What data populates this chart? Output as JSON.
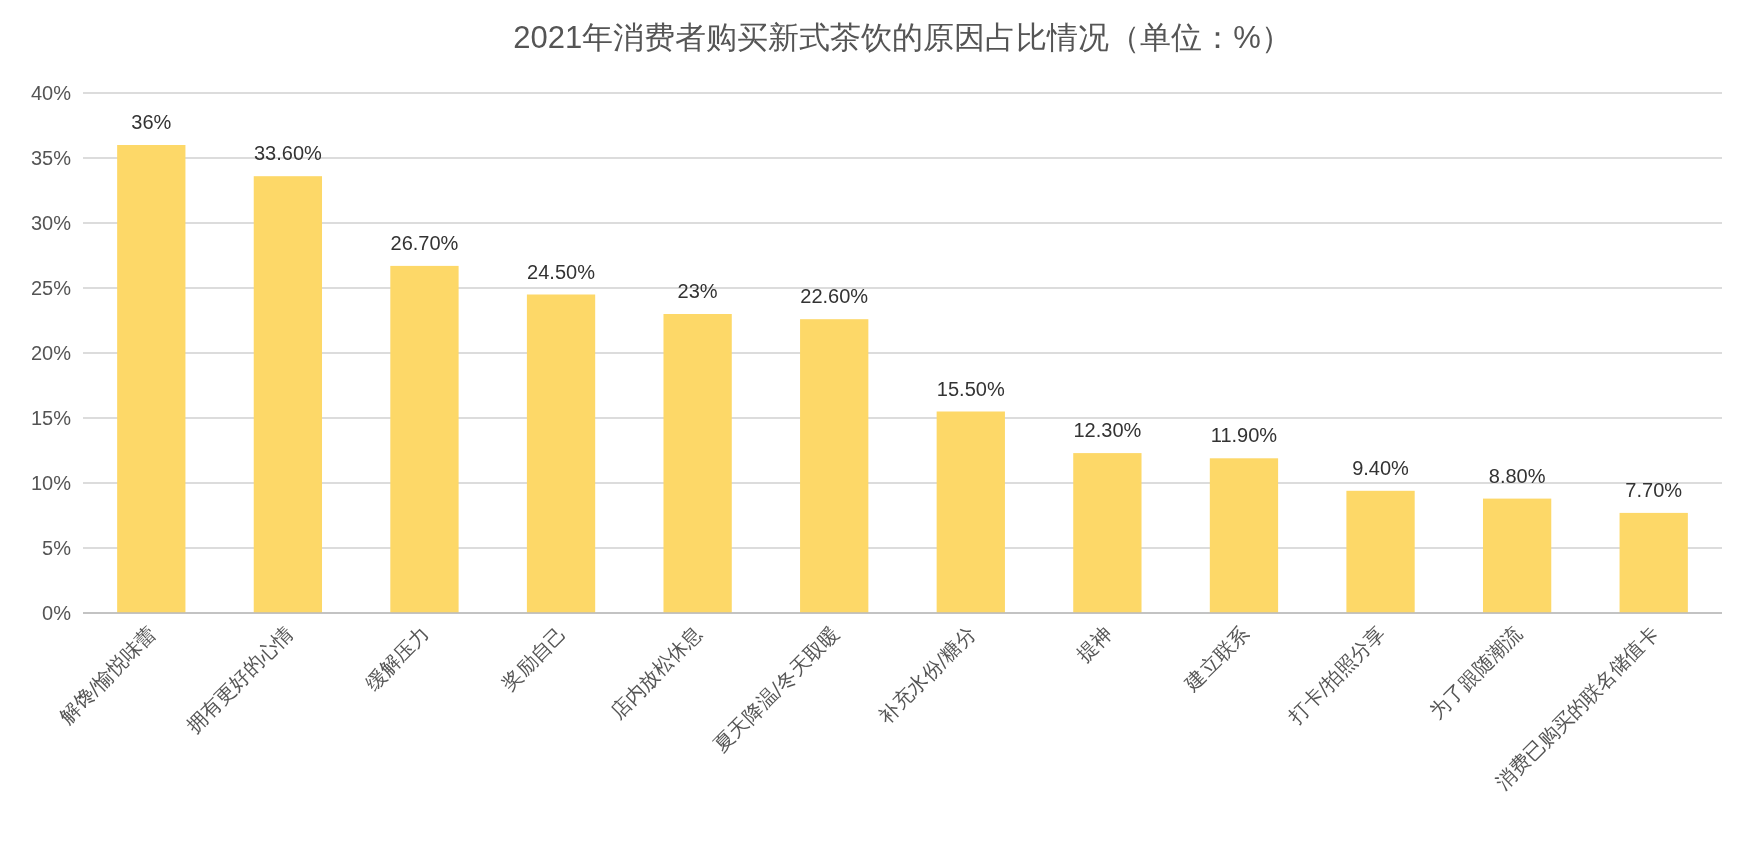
{
  "chart_data": {
    "type": "bar",
    "title": "2021年消费者购买新式茶饮的原因占比情况（单位：%）",
    "categories": [
      "解馋/愉悦味蕾",
      "拥有更好的心情",
      "缓解压力",
      "奖励自己",
      "店内放松休息",
      "夏天降温/冬天取暖",
      "补充水份/糖分",
      "提神",
      "建立联系",
      "打卡/拍照分享",
      "为了跟随潮流",
      "消费已购买的联名储值卡"
    ],
    "values": [
      36,
      33.6,
      26.7,
      24.5,
      23,
      22.6,
      15.5,
      12.3,
      11.9,
      9.4,
      8.8,
      7.7
    ],
    "value_labels": [
      "36%",
      "33.60%",
      "26.70%",
      "24.50%",
      "23%",
      "22.60%",
      "15.50%",
      "12.30%",
      "11.90%",
      "9.40%",
      "8.80%",
      "7.70%"
    ],
    "color": "#fdd868",
    "ylim": [
      0,
      40
    ],
    "yticks": [
      {
        "value": 0,
        "label": "0%"
      },
      {
        "value": 5,
        "label": "5%"
      },
      {
        "value": 10,
        "label": "10%"
      },
      {
        "value": 15,
        "label": "15%"
      },
      {
        "value": 20,
        "label": "20%"
      },
      {
        "value": 25,
        "label": "25%"
      },
      {
        "value": 30,
        "label": "30%"
      },
      {
        "value": 35,
        "label": "35%"
      },
      {
        "value": 40,
        "label": "40%"
      }
    ],
    "grid": "y"
  }
}
